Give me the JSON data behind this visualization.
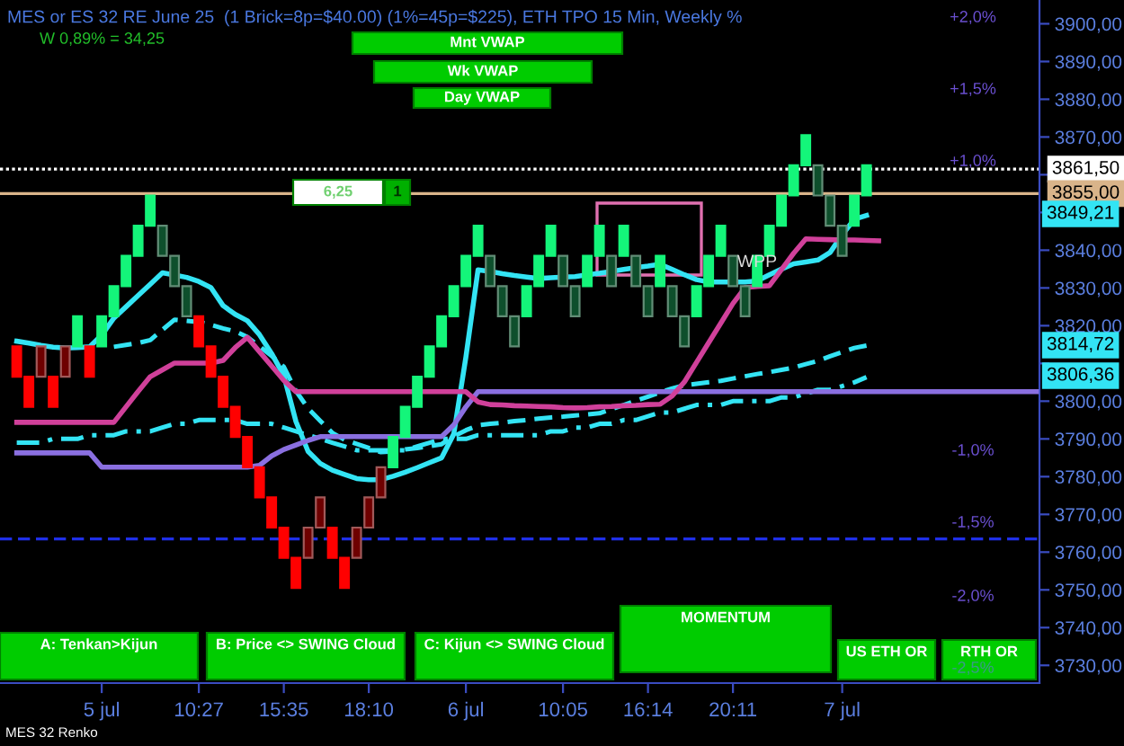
{
  "chart_data": {
    "type": "candlestick",
    "title": "MES or ES 32 RE June 25  (1 Brick=8p=$40.00) (1%=45p=$225), ETH TPO 15 Min, Weekly %",
    "categories": [
      null,
      null,
      null,
      null,
      null,
      null,
      null,
      "5 jul",
      null,
      null,
      null,
      null,
      null,
      null,
      null,
      "10:27",
      null,
      null,
      null,
      null,
      null,
      null,
      "15:35",
      null,
      null,
      null,
      null,
      null,
      null,
      "18:10",
      null,
      null,
      null,
      null,
      null,
      null,
      null,
      "6 jul",
      null,
      null,
      null,
      null,
      null,
      null,
      null,
      "10:05",
      null,
      null,
      null,
      null,
      null,
      null,
      "16:14",
      null,
      null,
      null,
      null,
      null,
      null,
      "20:11",
      null,
      null,
      null,
      null,
      null,
      null,
      null,
      null,
      "7 jul",
      null,
      null,
      null,
      null,
      null,
      null,
      null,
      null,
      null,
      null,
      null,
      null,
      null,
      null,
      null,
      null
    ],
    "ohlc": [
      [
        3814.5,
        3814.5,
        3806.5,
        3806.5
      ],
      [
        3806.5,
        3806.5,
        3798.5,
        3798.5
      ],
      [
        3806.5,
        3814.5,
        3806.5,
        3814.5
      ],
      [
        3806.5,
        3806.5,
        3798.5,
        3798.5
      ],
      [
        3806.5,
        3814.5,
        3806.5,
        3814.5
      ],
      [
        3814.5,
        3822.5,
        3814.5,
        3822.5
      ],
      [
        3814.5,
        3814.5,
        3806.5,
        3806.5
      ],
      [
        3814.5,
        3822.5,
        3814.5,
        3822.5
      ],
      [
        3822.5,
        3830.5,
        3822.5,
        3830.5
      ],
      [
        3830.5,
        3838.5,
        3830.5,
        3838.5
      ],
      [
        3838.5,
        3846.5,
        3838.5,
        3846.5
      ],
      [
        3846.5,
        3854.5,
        3846.5,
        3854.5
      ],
      [
        3846.5,
        3846.5,
        3838.5,
        3838.5
      ],
      [
        3838.5,
        3838.5,
        3830.5,
        3830.5
      ],
      [
        3830.5,
        3830.5,
        3822.5,
        3822.5
      ],
      [
        3822.5,
        3822.5,
        3814.5,
        3814.5
      ],
      [
        3814.5,
        3814.5,
        3806.5,
        3806.5
      ],
      [
        3806.5,
        3806.5,
        3798.5,
        3798.5
      ],
      [
        3798.5,
        3798.5,
        3790.5,
        3790.5
      ],
      [
        3790.5,
        3790.5,
        3782.5,
        3782.5
      ],
      [
        3782.5,
        3782.5,
        3774.5,
        3774.5
      ],
      [
        3774.5,
        3774.5,
        3766.5,
        3766.5
      ],
      [
        3766.5,
        3766.5,
        3758.5,
        3758.5
      ],
      [
        3758.5,
        3758.5,
        3750.5,
        3750.5
      ],
      [
        3758.5,
        3766.5,
        3758.5,
        3766.5
      ],
      [
        3766.5,
        3774.5,
        3766.5,
        3774.5
      ],
      [
        3766.5,
        3766.5,
        3758.5,
        3758.5
      ],
      [
        3758.5,
        3758.5,
        3750.5,
        3750.5
      ],
      [
        3758.5,
        3766.5,
        3758.5,
        3766.5
      ],
      [
        3766.5,
        3774.5,
        3766.5,
        3774.5
      ],
      [
        3774.5,
        3782.5,
        3774.5,
        3782.5
      ],
      [
        3782.5,
        3790.5,
        3782.5,
        3790.5
      ],
      [
        3790.5,
        3798.5,
        3790.5,
        3798.5
      ],
      [
        3798.5,
        3806.5,
        3798.5,
        3806.5
      ],
      [
        3806.5,
        3814.5,
        3806.5,
        3814.5
      ],
      [
        3814.5,
        3822.5,
        3814.5,
        3822.5
      ],
      [
        3822.5,
        3830.5,
        3822.5,
        3830.5
      ],
      [
        3830.5,
        3838.5,
        3830.5,
        3838.5
      ],
      [
        3838.5,
        3846.5,
        3838.5,
        3846.5
      ],
      [
        3838.5,
        3838.5,
        3830.5,
        3830.5
      ],
      [
        3830.5,
        3830.5,
        3822.5,
        3822.5
      ],
      [
        3822.5,
        3822.5,
        3814.5,
        3814.5
      ],
      [
        3822.5,
        3830.5,
        3822.5,
        3830.5
      ],
      [
        3830.5,
        3838.5,
        3830.5,
        3838.5
      ],
      [
        3838.5,
        3846.5,
        3838.5,
        3846.5
      ],
      [
        3838.5,
        3838.5,
        3830.5,
        3830.5
      ],
      [
        3830.5,
        3830.5,
        3822.5,
        3822.5
      ],
      [
        3830.5,
        3838.5,
        3830.5,
        3838.5
      ],
      [
        3838.5,
        3846.5,
        3838.5,
        3846.5
      ],
      [
        3838.5,
        3838.5,
        3830.5,
        3830.5
      ],
      [
        3838.5,
        3846.5,
        3838.5,
        3846.5
      ],
      [
        3838.5,
        3838.5,
        3830.5,
        3830.5
      ],
      [
        3830.5,
        3830.5,
        3822.5,
        3822.5
      ],
      [
        3830.5,
        3838.5,
        3830.5,
        3838.5
      ],
      [
        3830.5,
        3830.5,
        3822.5,
        3822.5
      ],
      [
        3822.5,
        3822.5,
        3814.5,
        3814.5
      ],
      [
        3822.5,
        3830.5,
        3822.5,
        3830.5
      ],
      [
        3830.5,
        3838.5,
        3830.5,
        3838.5
      ],
      [
        3838.5,
        3846.5,
        3838.5,
        3846.5
      ],
      [
        3838.5,
        3838.5,
        3830.5,
        3830.5
      ],
      [
        3830.5,
        3830.5,
        3822.5,
        3822.5
      ],
      [
        3830.5,
        3838.5,
        3830.5,
        3838.5
      ],
      [
        3838.5,
        3846.5,
        3838.5,
        3846.5
      ],
      [
        3846.5,
        3854.5,
        3846.5,
        3854.5
      ],
      [
        3854.5,
        3862.5,
        3854.5,
        3862.5
      ],
      [
        3862.5,
        3870.5,
        3862.5,
        3870.5
      ],
      [
        3862.5,
        3862.5,
        3854.5,
        3854.5
      ],
      [
        3854.5,
        3854.5,
        3846.5,
        3846.5
      ],
      [
        3846.5,
        3846.5,
        3838.5,
        3838.5
      ],
      [
        3846.5,
        3854.5,
        3846.5,
        3854.5
      ],
      [
        3854.5,
        3862.5,
        3854.5,
        3862.5
      ],
      null,
      null,
      null,
      null,
      null,
      null,
      null,
      null,
      null,
      null,
      null,
      null,
      null,
      null
    ],
    "colors": [
      "#ff0000",
      "#ff0000",
      "#6e0000",
      "#ff0000",
      "#6e0000",
      "#14f57a",
      "#ff0000",
      "#14f57a",
      "#14f57a",
      "#14f57a",
      "#14f57a",
      "#14f57a",
      "#0e4f2c",
      "#0e4f2c",
      "#0e4f2c",
      "#ff0000",
      "#ff0000",
      "#ff0000",
      "#ff0000",
      "#ff0000",
      "#ff0000",
      "#ff0000",
      "#ff0000",
      "#ff0000",
      "#6e0000",
      "#6e0000",
      "#ff0000",
      "#ff0000",
      "#6e0000",
      "#6e0000",
      "#6e0000",
      "#14f57a",
      "#14f57a",
      "#14f57a",
      "#14f57a",
      "#14f57a",
      "#14f57a",
      "#14f57a",
      "#14f57a",
      "#0e4f2c",
      "#0e4f2c",
      "#0e4f2c",
      "#14f57a",
      "#14f57a",
      "#14f57a",
      "#0e4f2c",
      "#0e4f2c",
      "#14f57a",
      "#14f57a",
      "#0e4f2c",
      "#14f57a",
      "#0e4f2c",
      "#0e4f2c",
      "#14f57a",
      "#0e4f2c",
      "#0e4f2c",
      "#14f57a",
      "#14f57a",
      "#14f57a",
      "#0e4f2c",
      "#0e4f2c",
      "#14f57a",
      "#14f57a",
      "#14f57a",
      "#14f57a",
      "#14f57a",
      "#0e4f2c",
      "#0e4f2c",
      "#0e4f2c",
      "#14f57a",
      "#14f57a",
      null,
      null,
      null,
      null,
      null,
      null,
      null,
      null,
      null,
      null,
      null,
      null,
      null,
      null
    ],
    "series": [
      {
        "type": "line",
        "color": "#33e4f4",
        "line_style": "solid",
        "values": [
          3815.9,
          3815.4,
          3814.8,
          3814.3,
          3814.1,
          3814.2,
          3814.4,
          3817.5,
          3822.0,
          3825.0,
          3828.0,
          3831.0,
          3834.0,
          3833.4,
          3832.8,
          3831.7,
          3830.1,
          3825.3,
          3823.0,
          3821.3,
          3817.6,
          3812.6,
          3806.8,
          3794.6,
          3786.7,
          3783.5,
          3781.7,
          3780.6,
          3779.5,
          3779.2,
          3779.2,
          3780.1,
          3781.2,
          3782.4,
          3783.7,
          3785.0,
          3791.3,
          3811.7,
          3834.8,
          3834.4,
          3833.8,
          3833.3,
          3832.9,
          3832.5,
          3832.7,
          3832.9,
          3833.0,
          3833.5,
          3833.9,
          3834.4,
          3834.9,
          3835.4,
          3835.8,
          3836.3,
          3834.9,
          3833.5,
          3832.2,
          3831.6,
          3831.6,
          3831.6,
          3831.6,
          3831.9,
          3833.5,
          3835.0,
          3836.4,
          3836.9,
          3837.4,
          3839.4,
          3844.1,
          3848.2,
          3849.21,
          null,
          null,
          null,
          null,
          null,
          null,
          null,
          null,
          null,
          null,
          null,
          null,
          null,
          null
        ]
      },
      {
        "type": "line",
        "color": "#33e4f4",
        "line_style": "dashed",
        "values": [
          null,
          null,
          null,
          null,
          null,
          null,
          null,
          null,
          3814.4,
          3814.9,
          3815.4,
          3816.2,
          3818.9,
          3821.6,
          3821.3,
          3821.0,
          3820.2,
          3819.3,
          3818.5,
          3817.0,
          3814.5,
          3812.0,
          3809.1,
          3802.7,
          3798.1,
          3794.8,
          3791.6,
          3789.8,
          3788.7,
          3787.6,
          3786.5,
          3786.7,
          3787.2,
          3787.6,
          3788.1,
          3788.6,
          3790.7,
          3792.3,
          3793.6,
          3794.0,
          3794.3,
          3794.7,
          3795.0,
          3795.4,
          3795.7,
          3795.9,
          3796.2,
          3796.5,
          3796.8,
          3797.9,
          3799.0,
          3800.1,
          3801.2,
          3802.3,
          3803.4,
          3804.2,
          3804.6,
          3805.0,
          3805.4,
          3806.0,
          3806.6,
          3807.2,
          3807.7,
          3808.3,
          3808.9,
          3809.8,
          3810.7,
          3811.9,
          3813.0,
          3814.1,
          3814.72,
          null,
          null,
          null,
          null,
          null,
          null,
          null,
          null,
          null,
          null,
          null,
          null,
          null,
          null
        ]
      },
      {
        "type": "line",
        "color": "#33e4f4",
        "line_style": "dashdot",
        "values": [
          3789,
          3789,
          3789,
          3790,
          3790,
          3790,
          3791,
          3791,
          3791,
          3792,
          3792,
          3792,
          3793,
          3794,
          3794,
          3795,
          3795,
          3795,
          3795,
          3794,
          3794,
          3794,
          3793,
          3792,
          3791,
          3790,
          3789,
          3788,
          3787,
          3787,
          3787,
          3787,
          3787,
          3788,
          3789,
          3790,
          3790,
          3790,
          3791,
          3791,
          3791,
          3791,
          3791,
          3791,
          3792,
          3792,
          3793,
          3793,
          3794,
          3794,
          3795,
          3795,
          3796,
          3797,
          3797,
          3798,
          3799,
          3799,
          3799,
          3800,
          3800,
          3800,
          3800,
          3801,
          3801,
          3802,
          3803,
          3803,
          3804,
          3805,
          3806.36,
          null,
          null,
          null,
          null,
          null,
          null,
          null,
          null,
          null,
          null,
          null,
          null,
          null,
          null
        ]
      },
      {
        "type": "line",
        "color": "#8a6fe0",
        "line_style": "solid",
        "values": [
          3786.3,
          3786.3,
          3786.3,
          3786.3,
          3786.3,
          3786.3,
          3786.3,
          3782.5,
          3782.5,
          3782.5,
          3782.5,
          3782.5,
          3782.5,
          3782.5,
          3782.5,
          3782.5,
          3782.5,
          3782.5,
          3782.5,
          3782.5,
          3783.0,
          3785.5,
          3787.2,
          3788.4,
          3789.6,
          3790.6,
          3790.6,
          3790.6,
          3790.6,
          3790.6,
          3790.6,
          3790.6,
          3790.6,
          3790.6,
          3790.6,
          3790.6,
          3793.7,
          3798.5,
          3802.5,
          3802.5,
          3802.5,
          3802.5,
          3802.5,
          3802.5,
          3802.5,
          3802.5,
          3802.5,
          3802.5,
          3802.5,
          3802.5,
          3802.5,
          3802.5,
          3802.5,
          3802.5,
          3802.5,
          3802.5,
          3802.5,
          3802.5,
          3802.5,
          3802.5,
          3802.5,
          3802.5,
          3802.5,
          3802.5,
          3802.5,
          3802.5,
          3802.5,
          3802.5,
          3802.5,
          3802.5,
          3802.5,
          3802.5,
          3802.5,
          3802.5,
          3802.5,
          3802.5,
          3802.5,
          3802.5,
          3802.5,
          3802.5,
          3802.5,
          3802.5,
          3802.5,
          3802.5,
          3802.5
        ]
      },
      {
        "type": "line",
        "color": "#d0409a",
        "line_style": "solid",
        "values": [
          3794.4,
          3794.4,
          3794.4,
          3794.4,
          3794.4,
          3794.4,
          3794.4,
          3794.4,
          3794.4,
          3798.5,
          3802.6,
          3806.5,
          3808.3,
          3810.1,
          3810.1,
          3810.1,
          3810.1,
          3810.8,
          3814.2,
          3816.9,
          3813.1,
          3809.3,
          3805.5,
          3802.5,
          3802.5,
          3802.5,
          3802.5,
          3802.5,
          3802.5,
          3802.5,
          3802.5,
          3802.5,
          3802.5,
          3802.5,
          3802.5,
          3802.5,
          3802.5,
          3802.5,
          3799.8,
          3799.1,
          3799.0,
          3798.8,
          3798.7,
          3798.6,
          3798.5,
          3798.3,
          3798.2,
          3798.3,
          3798.5,
          3798.6,
          3798.8,
          3798.9,
          3799.1,
          3799.2,
          3801.4,
          3805.1,
          3810.3,
          3815.5,
          3820.7,
          3825.9,
          3830.1,
          3830.4,
          3830.6,
          3834.9,
          3839.2,
          3843.0,
          3842.9,
          3842.8,
          3842.7,
          3842.7,
          3842.6,
          3842.5,
          null,
          null,
          null,
          null,
          null,
          null,
          null,
          null,
          null,
          null,
          null,
          null,
          null
        ]
      }
    ],
    "ref_lines": [
      {
        "axis": "y",
        "value": 3861.5,
        "label": "3861,50",
        "color": "#ffffff",
        "line_style": "dotted"
      },
      {
        "axis": "y",
        "value": 3855,
        "label": "3855,00",
        "color": "#d9b48a",
        "line_style": "solid"
      },
      {
        "axis": "y",
        "value": 3763.5,
        "label": null,
        "color": "#1f2fe8",
        "line_style": "dashed"
      }
    ],
    "annotations": [
      "W 0,89% = 34,25",
      "Mnt VWAP",
      "Wk VWAP",
      "Day VWAP",
      "6,25",
      "1",
      "A: Tenkan>Kijun",
      "B: Price <> SWING Cloud",
      "C: Kijun <> SWING Cloud",
      "MOMENTUM",
      "US ETH OR",
      "RTH OR",
      "MES 32 Renko",
      "WPP",
      "+2,0%",
      "+1,5%",
      "+1,0%",
      "-1,0%",
      "-1,5%",
      "-2,0%",
      "-2,5%",
      "3849,21",
      "3814,72",
      "3806,36"
    ],
    "ylim": [
      3725.3,
      3906.3
    ],
    "yticks": [
      {
        "value": 3730,
        "label": "3730,00"
      },
      {
        "value": 3740,
        "label": "3740,00"
      },
      {
        "value": 3750,
        "label": "3750,00"
      },
      {
        "value": 3760,
        "label": "3760,00"
      },
      {
        "value": 3770,
        "label": "3770,00"
      },
      {
        "value": 3780,
        "label": "3780,00"
      },
      {
        "value": 3790,
        "label": "3790,00"
      },
      {
        "value": 3800,
        "label": "3800,00"
      },
      {
        "value": 3810,
        "label": null
      },
      {
        "value": 3820,
        "label": "3820,00"
      },
      {
        "value": 3830,
        "label": "3830,00"
      },
      {
        "value": 3840,
        "label": "3840,00"
      },
      {
        "value": 3850,
        "label": null
      },
      {
        "value": 3860,
        "label": null
      },
      {
        "value": 3870,
        "label": "3870,00"
      },
      {
        "value": 3880,
        "label": "3880,00"
      },
      {
        "value": 3890,
        "label": "3890,00"
      },
      {
        "value": 3900,
        "label": "3900,00"
      }
    ]
  }
}
